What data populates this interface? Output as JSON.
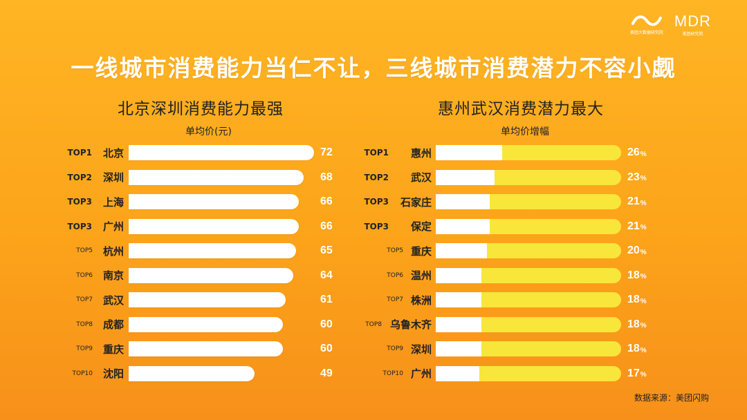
{
  "header": {
    "logo_left_sub": "美团大数据研究院",
    "logo_right_text": "MDR",
    "logo_right_sub": "美团研究院",
    "headline": "一线城市消费能力当仁不让，三线城市消费潜力不容小觑"
  },
  "source": "数据来源：美团闪购",
  "colors": {
    "background": "#fca41a",
    "bar": "#ffffff",
    "growth_track": "#f8e63a"
  },
  "chart_data": [
    {
      "type": "bar",
      "orientation": "horizontal",
      "title": "北京深圳消费能力最强",
      "subtitle": "单均价(元)",
      "ranks": [
        "TOP1",
        "TOP2",
        "TOP3",
        "TOP3",
        "TOP5",
        "TOP6",
        "TOP7",
        "TOP8",
        "TOP9",
        "TOP10"
      ],
      "categories": [
        "北京",
        "深圳",
        "上海",
        "广州",
        "杭州",
        "南京",
        "武汉",
        "成都",
        "重庆",
        "沈阳"
      ],
      "values": [
        72,
        68,
        66,
        66,
        65,
        64,
        61,
        60,
        60,
        49
      ],
      "value_suffix": ""
    },
    {
      "type": "bar",
      "orientation": "horizontal",
      "title": "惠州武汉消费潜力最大",
      "subtitle": "单均价增幅",
      "ranks": [
        "TOP1",
        "TOP2",
        "TOP3",
        "TOP3",
        "TOP5",
        "TOP6",
        "TOP7",
        "TOP8",
        "TOP9",
        "TOP10"
      ],
      "categories": [
        "惠州",
        "武汉",
        "石家庄",
        "保定",
        "重庆",
        "温州",
        "株洲",
        "乌鲁木齐",
        "深圳",
        "广州"
      ],
      "values": [
        26,
        23,
        21,
        21,
        20,
        18,
        18,
        18,
        18,
        17
      ],
      "value_suffix": "%"
    }
  ]
}
